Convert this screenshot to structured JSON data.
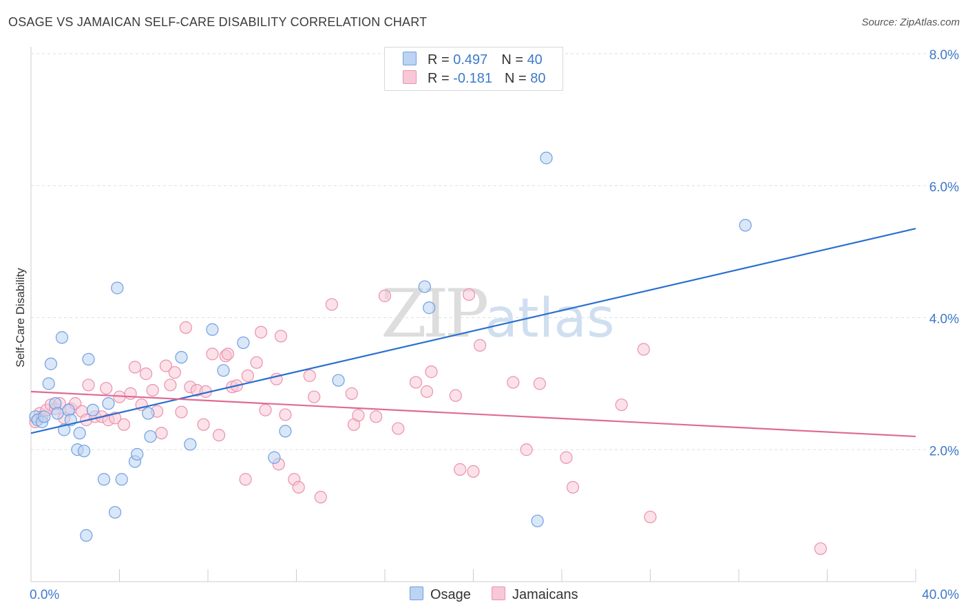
{
  "header": {
    "title": "OSAGE VS JAMAICAN SELF-CARE DISABILITY CORRELATION CHART",
    "source": "Source: ZipAtlas.com"
  },
  "watermark": {
    "zip": "ZIP",
    "atlas": "atlas"
  },
  "legend": {
    "osage": {
      "r_label": "R = ",
      "r_value": "0.497",
      "n_label": "N = ",
      "n_value": "40"
    },
    "jamaicans": {
      "r_label": "R = ",
      "r_value": "-0.181",
      "n_label": "N = ",
      "n_value": "80"
    }
  },
  "chart_data": {
    "type": "scatter",
    "title": "OSAGE VS JAMAICAN SELF-CARE DISABILITY CORRELATION CHART",
    "xlabel": "",
    "ylabel": "Self-Care Disability",
    "xlim": [
      0,
      40
    ],
    "ylim": [
      0,
      8
    ],
    "x_tick_labels": [
      "0.0%",
      "40.0%"
    ],
    "y_ticks": [
      2,
      4,
      6,
      8
    ],
    "y_tick_labels": [
      "2.0%",
      "4.0%",
      "6.0%",
      "8.0%"
    ],
    "grid": true,
    "colors": {
      "osage": "#6f9fe0",
      "osage_fill": "#bcd3f2",
      "osage_line": "#2a6fcf",
      "jamaicans": "#eb90ae",
      "jamaicans_fill": "#f8c8d6",
      "jamaicans_line": "#e06a95"
    },
    "series": [
      {
        "name": "Osage",
        "trend": {
          "x": [
            0,
            40
          ],
          "y": [
            2.25,
            5.35
          ]
        },
        "points": [
          [
            0.2,
            2.5
          ],
          [
            0.3,
            2.45
          ],
          [
            0.5,
            2.42
          ],
          [
            0.8,
            3.0
          ],
          [
            0.9,
            3.3
          ],
          [
            1.1,
            2.7
          ],
          [
            1.2,
            2.55
          ],
          [
            1.4,
            3.7
          ],
          [
            1.5,
            2.3
          ],
          [
            1.7,
            2.6
          ],
          [
            1.8,
            2.45
          ],
          [
            2.1,
            2.0
          ],
          [
            2.2,
            2.25
          ],
          [
            2.4,
            1.98
          ],
          [
            2.6,
            3.37
          ],
          [
            2.8,
            2.6
          ],
          [
            3.3,
            1.55
          ],
          [
            3.5,
            2.7
          ],
          [
            3.8,
            1.05
          ],
          [
            3.9,
            4.45
          ],
          [
            4.1,
            1.55
          ],
          [
            4.7,
            1.82
          ],
          [
            4.8,
            1.93
          ],
          [
            5.3,
            2.55
          ],
          [
            5.4,
            2.2
          ],
          [
            6.8,
            3.4
          ],
          [
            7.2,
            2.08
          ],
          [
            8.2,
            3.82
          ],
          [
            8.7,
            3.2
          ],
          [
            9.6,
            3.62
          ],
          [
            11.0,
            1.88
          ],
          [
            11.5,
            2.28
          ],
          [
            13.9,
            3.05
          ],
          [
            17.8,
            4.47
          ],
          [
            18.0,
            4.15
          ],
          [
            22.9,
            0.92
          ],
          [
            23.3,
            6.42
          ],
          [
            32.3,
            5.4
          ],
          [
            2.5,
            0.7
          ],
          [
            0.6,
            2.5
          ]
        ]
      },
      {
        "name": "Jamaicans",
        "trend": {
          "x": [
            0,
            40
          ],
          "y": [
            2.88,
            2.2
          ]
        },
        "points": [
          [
            0.2,
            2.42
          ],
          [
            0.4,
            2.55
          ],
          [
            0.5,
            2.5
          ],
          [
            0.7,
            2.6
          ],
          [
            0.9,
            2.68
          ],
          [
            1.1,
            2.62
          ],
          [
            1.3,
            2.7
          ],
          [
            1.5,
            2.48
          ],
          [
            1.8,
            2.62
          ],
          [
            2.0,
            2.7
          ],
          [
            2.3,
            2.58
          ],
          [
            2.5,
            2.45
          ],
          [
            2.6,
            2.98
          ],
          [
            2.9,
            2.5
          ],
          [
            3.2,
            2.5
          ],
          [
            3.4,
            2.93
          ],
          [
            3.5,
            2.45
          ],
          [
            3.8,
            2.48
          ],
          [
            4.0,
            2.8
          ],
          [
            4.2,
            2.38
          ],
          [
            4.5,
            2.85
          ],
          [
            4.7,
            3.25
          ],
          [
            5.0,
            2.68
          ],
          [
            5.2,
            3.15
          ],
          [
            5.5,
            2.9
          ],
          [
            5.7,
            2.58
          ],
          [
            5.9,
            2.25
          ],
          [
            6.1,
            3.27
          ],
          [
            6.3,
            2.98
          ],
          [
            6.5,
            3.17
          ],
          [
            6.8,
            2.57
          ],
          [
            7.0,
            3.85
          ],
          [
            7.2,
            2.95
          ],
          [
            7.5,
            2.9
          ],
          [
            7.8,
            2.38
          ],
          [
            7.9,
            2.88
          ],
          [
            8.2,
            3.45
          ],
          [
            8.5,
            2.22
          ],
          [
            8.8,
            3.42
          ],
          [
            8.9,
            3.45
          ],
          [
            9.1,
            2.95
          ],
          [
            9.3,
            2.97
          ],
          [
            9.7,
            1.55
          ],
          [
            9.8,
            3.12
          ],
          [
            10.2,
            3.32
          ],
          [
            10.4,
            3.78
          ],
          [
            10.6,
            2.6
          ],
          [
            11.1,
            3.07
          ],
          [
            11.2,
            1.78
          ],
          [
            11.5,
            2.53
          ],
          [
            11.9,
            1.55
          ],
          [
            12.1,
            1.43
          ],
          [
            12.6,
            3.12
          ],
          [
            12.8,
            2.8
          ],
          [
            13.1,
            1.28
          ],
          [
            13.6,
            4.2
          ],
          [
            14.5,
            2.85
          ],
          [
            14.6,
            2.38
          ],
          [
            14.8,
            2.52
          ],
          [
            15.6,
            2.5
          ],
          [
            16.0,
            4.33
          ],
          [
            16.6,
            2.32
          ],
          [
            17.4,
            3.02
          ],
          [
            17.9,
            2.88
          ],
          [
            18.1,
            3.18
          ],
          [
            19.2,
            2.82
          ],
          [
            19.4,
            1.7
          ],
          [
            19.8,
            4.35
          ],
          [
            20.0,
            1.67
          ],
          [
            20.3,
            3.58
          ],
          [
            21.8,
            3.02
          ],
          [
            22.4,
            2.0
          ],
          [
            23.0,
            3.0
          ],
          [
            24.2,
            1.88
          ],
          [
            24.5,
            1.43
          ],
          [
            26.7,
            2.68
          ],
          [
            27.7,
            3.52
          ],
          [
            28.0,
            0.98
          ],
          [
            35.7,
            0.5
          ],
          [
            11.3,
            3.72
          ]
        ]
      }
    ],
    "legend_entries": [
      "Osage",
      "Jamaicans"
    ]
  }
}
